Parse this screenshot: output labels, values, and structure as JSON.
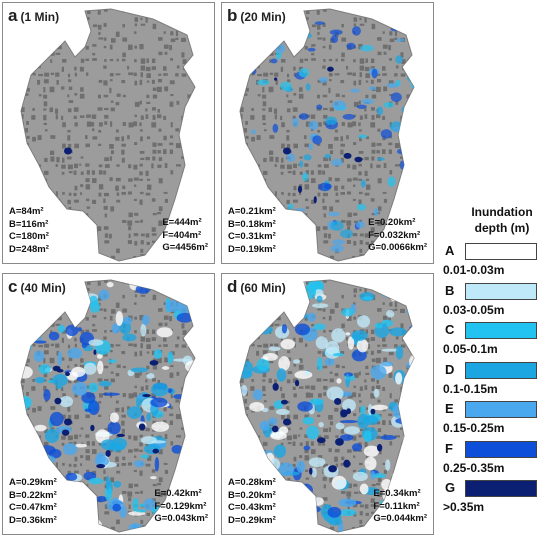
{
  "panels": [
    {
      "letter": "a",
      "time": "(1 Min)",
      "left": [
        "A=84m²",
        "B=116m²",
        "C=180m²",
        "D=248m²"
      ],
      "right": [
        "E=444m²",
        "F=404m²",
        "G=4456m²"
      ],
      "level": 0
    },
    {
      "letter": "b",
      "time": "(20 Min)",
      "left": [
        "A=0.21km²",
        "B=0.18km²",
        "C=0.31km²",
        "D=0.19km²"
      ],
      "right": [
        "E=0.20km²",
        "F=0.032km²",
        "G=0.0066km²"
      ],
      "level": 1
    },
    {
      "letter": "c",
      "time": "(40 Min)",
      "left": [
        "A=0.29km²",
        "B=0.22km²",
        "C=0.47km²",
        "D=0.36km²"
      ],
      "right": [
        "E=0.42km²",
        "F=0.129km²",
        "G=0.043km²"
      ],
      "level": 2
    },
    {
      "letter": "d",
      "time": "(60 Min)",
      "left": [
        "A=0.28km²",
        "B=0.20km²",
        "C=0.43km²",
        "D=0.29km²"
      ],
      "right": [
        "E=0.34km²",
        "F=0.11km²",
        "G=0.044km²"
      ],
      "level": 2
    }
  ],
  "legend": {
    "title_line1": "Inundation",
    "title_line2": "depth (m)",
    "items": [
      {
        "letter": "A",
        "range": "0.01-0.03m",
        "color": "#ffffff"
      },
      {
        "letter": "B",
        "range": "0.03-0.05m",
        "color": "#bfe8f8"
      },
      {
        "letter": "C",
        "range": "0.05-0.1m",
        "color": "#22c3f0"
      },
      {
        "letter": "D",
        "range": "0.1-0.15m",
        "color": "#1ba6e2"
      },
      {
        "letter": "E",
        "range": "0.15-0.25m",
        "color": "#4aa8ee"
      },
      {
        "letter": "F",
        "range": "0.25-0.35m",
        "color": "#0d4fd8"
      },
      {
        "letter": "G",
        "range": ">0.35m",
        "color": "#0b1f73"
      }
    ]
  },
  "colors": {
    "ground": "#9c9c9c",
    "building": "#6f6f6f",
    "panel_border": "#8a8a8a"
  }
}
